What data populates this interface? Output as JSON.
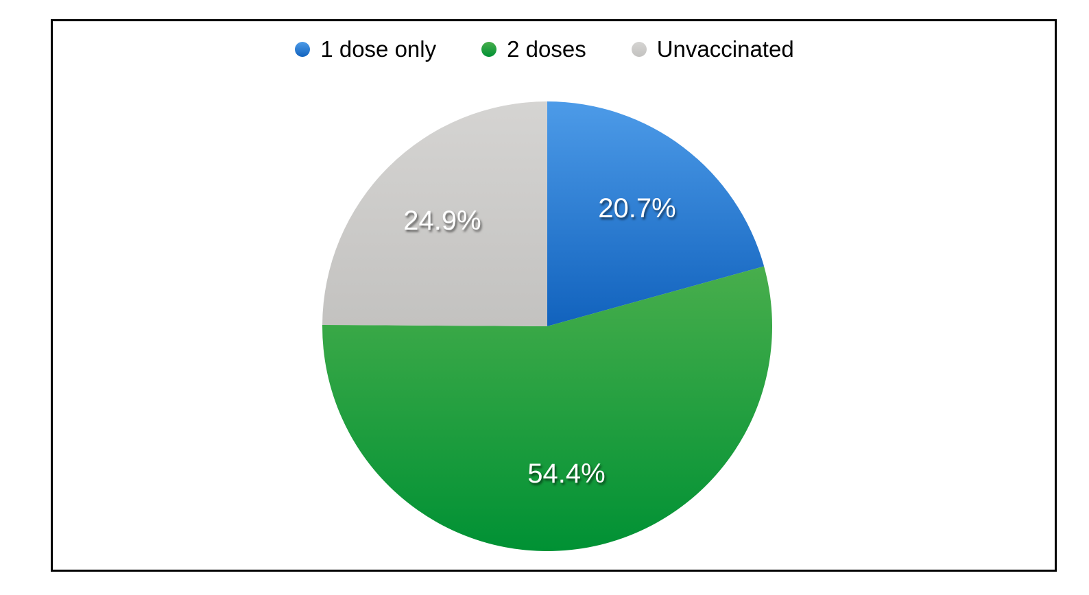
{
  "chart_data": {
    "type": "pie",
    "title": "",
    "legend_position": "top",
    "direction": "clockwise",
    "start_angle_deg": 0,
    "total": 100,
    "series": [
      {
        "label": "1 dose only",
        "value": 20.7,
        "display": "20.7%",
        "color_top": "#4d9be8",
        "color_bottom": "#1162bd"
      },
      {
        "label": "2 doses",
        "value": 54.4,
        "display": "54.4%",
        "color_top": "#48ae4c",
        "color_bottom": "#009134"
      },
      {
        "label": "Unvaccinated",
        "value": 24.9,
        "display": "24.9%",
        "color_top": "#d5d4d2",
        "color_bottom": "#c3c2c0"
      }
    ]
  },
  "colors": {
    "background": "#ffffff",
    "frame_border": "#000000",
    "legend_text": "#000000",
    "slice_label_text": "#ffffff"
  }
}
